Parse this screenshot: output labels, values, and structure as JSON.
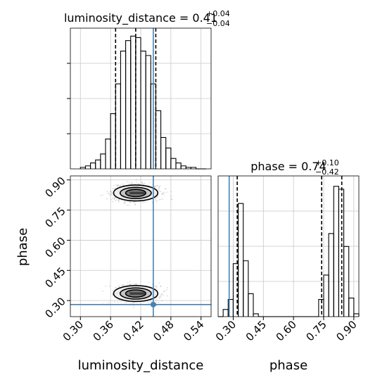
{
  "chart_data": [
    {
      "type": "histogram",
      "panel": "top-left",
      "title_name": "luminosity_distance",
      "title_value": "0.41",
      "title_plus": "+0.04",
      "title_minus": "−0.04",
      "x": [
        0.305,
        0.315,
        0.325,
        0.335,
        0.345,
        0.355,
        0.365,
        0.375,
        0.385,
        0.395,
        0.405,
        0.415,
        0.425,
        0.435,
        0.445,
        0.455,
        0.465,
        0.475,
        0.485,
        0.495,
        0.505,
        0.515,
        0.525,
        0.535,
        0.545
      ],
      "counts": [
        0.01,
        0.02,
        0.04,
        0.06,
        0.1,
        0.2,
        0.37,
        0.57,
        0.79,
        0.86,
        0.89,
        0.88,
        0.79,
        0.76,
        0.57,
        0.39,
        0.21,
        0.14,
        0.07,
        0.04,
        0.02,
        0.01,
        0.01,
        0.0,
        0.0
      ],
      "quantiles": [
        0.37,
        0.41,
        0.45
      ],
      "truth": 0.445,
      "xlim": [
        0.28,
        0.56
      ]
    },
    {
      "type": "contour",
      "panel": "bottom-left",
      "xlabel": "luminosity_distance",
      "ylabel": "phase",
      "xticks": [
        "0.30",
        "0.36",
        "0.42",
        "0.48",
        "0.54"
      ],
      "xtick_values": [
        0.3,
        0.36,
        0.42,
        0.48,
        0.54
      ],
      "yticks": [
        "0.30",
        "0.45",
        "0.60",
        "0.75",
        "0.90"
      ],
      "ytick_values": [
        0.3,
        0.45,
        0.6,
        0.75,
        0.9
      ],
      "xlim": [
        0.28,
        0.56
      ],
      "ylim": [
        0.22,
        0.92
      ],
      "modes": [
        {
          "x": 0.41,
          "y": 0.835,
          "sx": 0.02,
          "sy": 0.018,
          "weight": 0.6
        },
        {
          "x": 0.41,
          "y": 0.335,
          "sx": 0.02,
          "sy": 0.018,
          "weight": 0.4
        }
      ],
      "truth": [
        0.445,
        0.28
      ]
    },
    {
      "type": "histogram",
      "panel": "bottom-right",
      "title_name": "phase",
      "title_value": "0.74",
      "title_plus": "+0.10",
      "title_minus": "−0.42",
      "xlabel": "phase",
      "xticks": [
        "0.30",
        "0.45",
        "0.60",
        "0.75",
        "0.90"
      ],
      "xtick_values": [
        0.3,
        0.45,
        0.6,
        0.75,
        0.9
      ],
      "x": [
        0.2375,
        0.2625,
        0.2875,
        0.3125,
        0.3375,
        0.3625,
        0.3875,
        0.4125,
        0.4375,
        0.4625,
        0.4875,
        0.5125,
        0.5375,
        0.5625,
        0.5875,
        0.6125,
        0.6375,
        0.6625,
        0.6875,
        0.7125,
        0.7375,
        0.7625,
        0.7875,
        0.8125,
        0.8375,
        0.8625,
        0.8875,
        0.9125
      ],
      "counts": [
        0.0,
        0.05,
        0.12,
        0.37,
        0.79,
        0.39,
        0.16,
        0.02,
        0.0,
        0.0,
        0.0,
        0.0,
        0.0,
        0.0,
        0.0,
        0.0,
        0.0,
        0.0,
        0.0,
        0.0,
        0.12,
        0.29,
        0.58,
        0.91,
        0.89,
        0.49,
        0.13,
        0.02
      ],
      "quantiles": [
        0.32,
        0.74,
        0.84
      ],
      "truth": 0.28,
      "xlim": [
        0.225,
        0.925
      ]
    }
  ],
  "colors": {
    "truth": "#4682b4",
    "line": "#000000",
    "grid": "#c8c8c8",
    "scatter": "#000000"
  }
}
